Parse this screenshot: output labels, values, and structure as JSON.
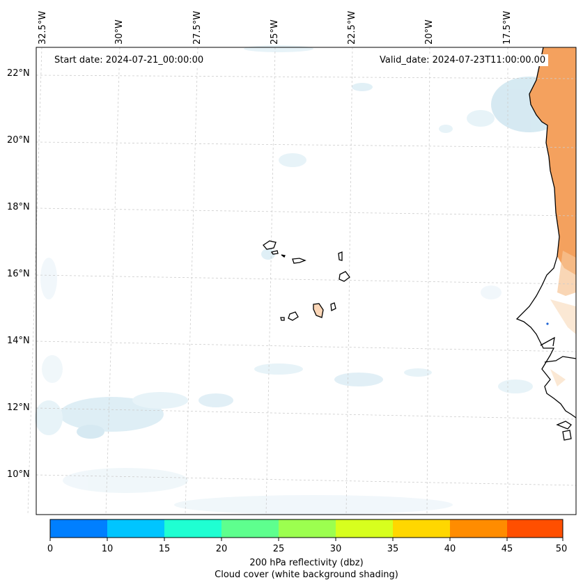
{
  "map": {
    "start_label": "Start date: 2024-07-21_00:00:00",
    "valid_label": "Valid_date: 2024-07-23T11:00:00.00",
    "longitude_labels": [
      "32.5°W",
      "30°W",
      "27.5°W",
      "25°W",
      "22.5°W",
      "20°W",
      "17.5°W"
    ],
    "latitude_labels": [
      "22°N",
      "20°N",
      "18°N",
      "16°N",
      "14°N",
      "12°N",
      "10°N"
    ],
    "colors": {
      "land_fill": "#f4a15e",
      "cloud_tint": "#d7ecf4",
      "coastline": "#000000",
      "gridline": "#cccccc"
    }
  },
  "colorbar": {
    "ticks": [
      "0",
      "10",
      "15",
      "20",
      "25",
      "30",
      "35",
      "40",
      "45",
      "50"
    ],
    "colors": [
      "#007fff",
      "#00c5ff",
      "#1fffd2",
      "#5eff8e",
      "#9cff4f",
      "#d7ff1e",
      "#ffd700",
      "#ff8c00",
      "#ff4f00"
    ],
    "caption_line1": "200 hPa reflectivity (dbz)",
    "caption_line2": "Cloud cover (white background shading)"
  }
}
